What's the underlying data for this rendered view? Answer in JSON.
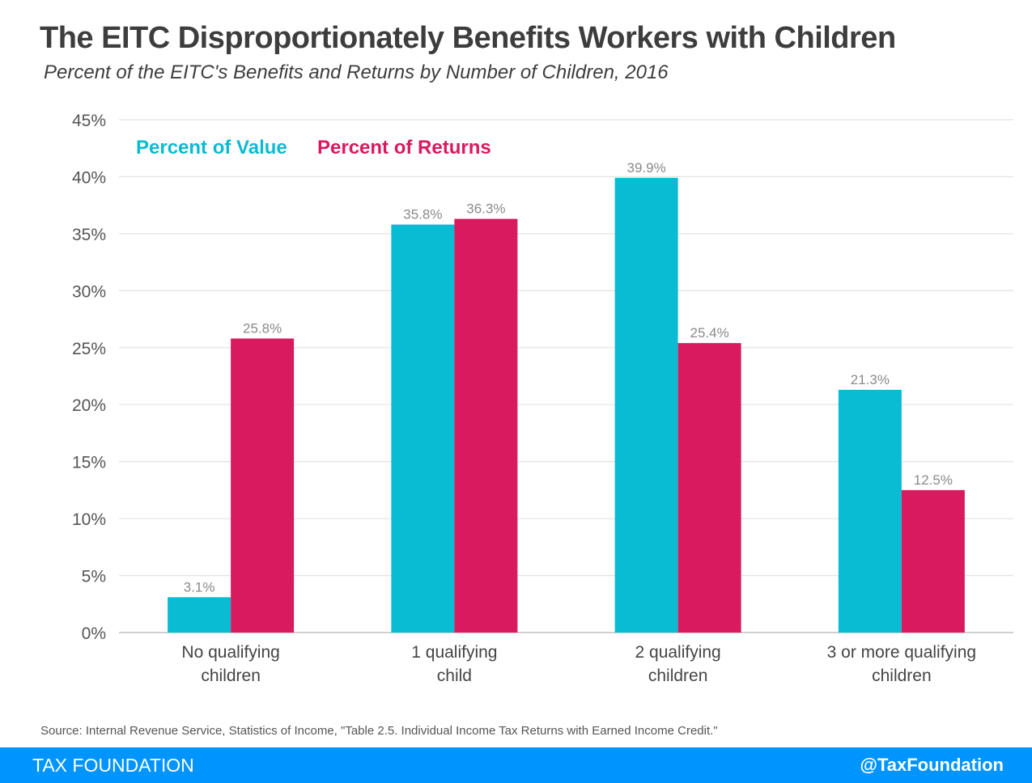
{
  "header": {
    "title": "The EITC Disproportionately Benefits Workers with Children",
    "subtitle": "Percent of the EITC's Benefits and Returns by Number of Children, 2016"
  },
  "chart_data": {
    "type": "bar",
    "title": "The EITC Disproportionately Benefits Workers with Children",
    "subtitle": "Percent of the EITC's Benefits and Returns by Number of Children, 2016",
    "categories": [
      [
        "No qualifying",
        "children"
      ],
      [
        "1 qualifying",
        "child"
      ],
      [
        "2 qualifying",
        "children"
      ],
      [
        "3 or more qualifying",
        "children"
      ]
    ],
    "series": [
      {
        "name": "Percent of Value",
        "color": "#0abbd4",
        "values": [
          3.1,
          35.8,
          39.9,
          21.3
        ],
        "labels": [
          "3.1%",
          "35.8%",
          "39.9%",
          "21.3%"
        ]
      },
      {
        "name": "Percent of Returns",
        "color": "#d91a5e",
        "values": [
          25.8,
          36.3,
          25.4,
          12.5
        ],
        "labels": [
          "25.8%",
          "36.3%",
          "25.4%",
          "12.5%"
        ]
      }
    ],
    "xlabel": "",
    "ylabel": "",
    "ylim": [
      0,
      45
    ],
    "yticks": [
      0,
      5,
      10,
      15,
      20,
      25,
      30,
      35,
      40,
      45
    ],
    "ytick_labels": [
      "0%",
      "5%",
      "10%",
      "15%",
      "20%",
      "25%",
      "30%",
      "35%",
      "40%",
      "45%"
    ],
    "grid": true,
    "legend_position": "top-left"
  },
  "source": "Source: Internal Revenue Service, Statistics of Income, \"Table 2.5. Individual Income Tax Returns with Earned Income Credit.\"",
  "footer": {
    "brand": "TAX FOUNDATION",
    "handle": "@TaxFoundation",
    "background": "#0094ff"
  }
}
